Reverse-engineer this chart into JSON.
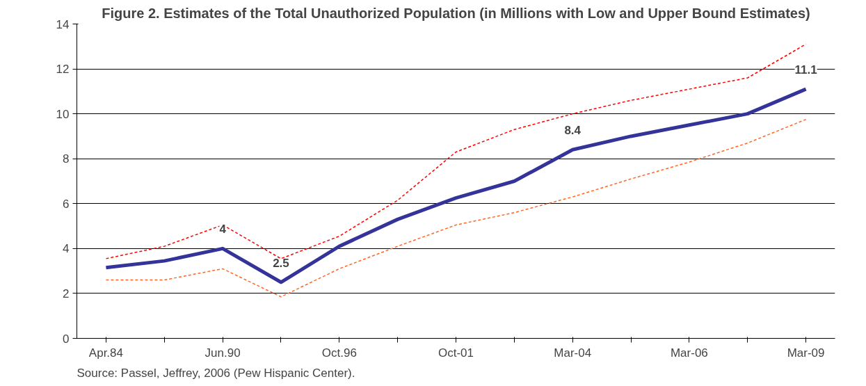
{
  "chart_data": {
    "type": "line",
    "title": "Figure 2. Estimates of the Total Unauthorized Population (in Millions with Low and Upper Bound Estimates)",
    "categories": [
      "Apr.84",
      null,
      "Jun.90",
      null,
      "Oct.96",
      null,
      "Oct-01",
      null,
      "Mar-04",
      null,
      "Mar-06",
      null,
      "Mar-09"
    ],
    "series": [
      {
        "color": "#ff0000",
        "line_style": "dashed",
        "values": [
          3.55,
          4.1,
          5.05,
          3.55,
          4.55,
          6.15,
          8.3,
          9.3,
          10.0,
          10.6,
          11.1,
          11.6,
          13.1
        ]
      },
      {
        "color": "#ff6622",
        "line_style": "dashed",
        "values": [
          2.6,
          2.6,
          3.1,
          1.85,
          3.1,
          4.1,
          5.05,
          5.6,
          6.3,
          7.1,
          7.85,
          8.7,
          9.75
        ]
      },
      {
        "color": "#333399",
        "line_style": "solid",
        "values": [
          3.15,
          3.45,
          4,
          2.5,
          4.1,
          5.3,
          6.25,
          7.0,
          8.4,
          9.0,
          9.5,
          10.0,
          11.1
        ],
        "value_labels": [
          null,
          null,
          "4",
          "2.5",
          null,
          null,
          null,
          null,
          "8.4",
          null,
          null,
          null,
          "11.1"
        ]
      }
    ],
    "ylim": [
      0,
      14
    ],
    "yticks": [
      0,
      2,
      4,
      6,
      8,
      10,
      12,
      14
    ],
    "grid": "y",
    "marker": "none",
    "annotations": [
      "Source: Passel, Jeffrey, 2006 (Pew Hispanic Center)."
    ]
  }
}
